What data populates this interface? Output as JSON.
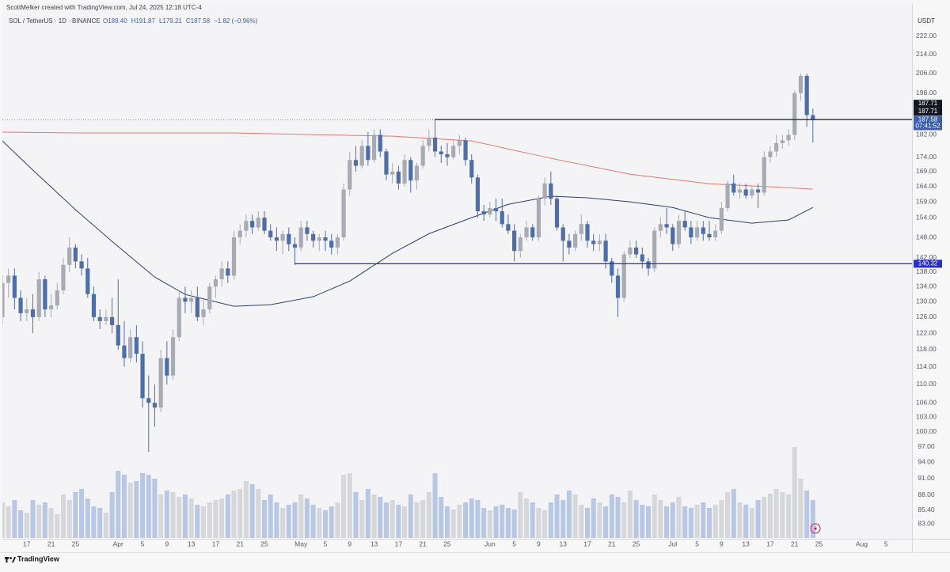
{
  "header": {
    "author_line": "ScottMelker created with TradingView.com, Jul 24, 2025 12:18 UTC-4",
    "symbol": "SOL / TetherUS · 1D · BINANCE",
    "ohlc": [
      "O189.40",
      "H191.87",
      "L179.21",
      "C187.58"
    ],
    "change": "−1.82 (−0.96%)"
  },
  "brand": "TradingView",
  "chart_data": {
    "type": "candlestick",
    "currency": "USDT",
    "log_scale": true,
    "grid": false,
    "up_color": "#a8abb3",
    "down_color": "#4f6da6",
    "volume_up_color": "#d6d7da",
    "volume_down_color": "#b7c7e4",
    "xlim": [
      "03-13",
      "08-09"
    ],
    "ylim": [
      80.7,
      231.4
    ],
    "xticks": [
      {
        "value": "03-17",
        "label": "17"
      },
      {
        "value": "03-21",
        "label": "21"
      },
      {
        "value": "03-25",
        "label": "25"
      },
      {
        "value": "04-01",
        "label": "Apr"
      },
      {
        "value": "04-05",
        "label": "5"
      },
      {
        "value": "04-09",
        "label": "9"
      },
      {
        "value": "04-13",
        "label": "13"
      },
      {
        "value": "04-17",
        "label": "17"
      },
      {
        "value": "04-21",
        "label": "21"
      },
      {
        "value": "04-25",
        "label": "25"
      },
      {
        "value": "05-01",
        "label": "May"
      },
      {
        "value": "05-05",
        "label": "5"
      },
      {
        "value": "05-09",
        "label": "9"
      },
      {
        "value": "05-13",
        "label": "13"
      },
      {
        "value": "05-17",
        "label": "17"
      },
      {
        "value": "05-21",
        "label": "21"
      },
      {
        "value": "05-25",
        "label": "25"
      },
      {
        "value": "06-01",
        "label": "Jun"
      },
      {
        "value": "06-05",
        "label": "5"
      },
      {
        "value": "06-09",
        "label": "9"
      },
      {
        "value": "06-13",
        "label": "13"
      },
      {
        "value": "06-17",
        "label": "17"
      },
      {
        "value": "06-21",
        "label": "21"
      },
      {
        "value": "06-25",
        "label": "25"
      },
      {
        "value": "07-01",
        "label": "Jul"
      },
      {
        "value": "07-05",
        "label": "5"
      },
      {
        "value": "07-09",
        "label": "9"
      },
      {
        "value": "07-13",
        "label": "13"
      },
      {
        "value": "07-17",
        "label": "17"
      },
      {
        "value": "07-21",
        "label": "21"
      },
      {
        "value": "07-25",
        "label": "25"
      },
      {
        "value": "08-01",
        "label": "Aug"
      },
      {
        "value": "08-05",
        "label": "5"
      }
    ],
    "yticks": [
      {
        "value": 222,
        "label": "222.00"
      },
      {
        "value": 214,
        "label": "214.00"
      },
      {
        "value": 206,
        "label": "206.00"
      },
      {
        "value": 198,
        "label": "198.00"
      },
      {
        "value": 182,
        "label": "182.00"
      },
      {
        "value": 174,
        "label": "174.00"
      },
      {
        "value": 169,
        "label": "169.00"
      },
      {
        "value": 164,
        "label": "164.00"
      },
      {
        "value": 159,
        "label": "159.00"
      },
      {
        "value": 154,
        "label": "154.00"
      },
      {
        "value": 148,
        "label": "148.00"
      },
      {
        "value": 142,
        "label": "142.00"
      },
      {
        "value": 138,
        "label": "138.00"
      },
      {
        "value": 134,
        "label": "134.00"
      },
      {
        "value": 130,
        "label": "130.00"
      },
      {
        "value": 126,
        "label": "126.00"
      },
      {
        "value": 122,
        "label": "122.00"
      },
      {
        "value": 118,
        "label": "118.00"
      },
      {
        "value": 114,
        "label": "114.00"
      },
      {
        "value": 110,
        "label": "110.00"
      },
      {
        "value": 106,
        "label": "106.00"
      },
      {
        "value": 103,
        "label": "103.00"
      },
      {
        "value": 100,
        "label": "100.00"
      },
      {
        "value": 97,
        "label": "97.00"
      },
      {
        "value": 94,
        "label": "94.00"
      },
      {
        "value": 91,
        "label": "91.00"
      },
      {
        "value": 88,
        "label": "88.00"
      },
      {
        "value": 85.4,
        "label": "85.40"
      },
      {
        "value": 83,
        "label": "83.00"
      }
    ],
    "x": [
      "03-13",
      "03-14",
      "03-15",
      "03-16",
      "03-17",
      "03-18",
      "03-19",
      "03-20",
      "03-21",
      "03-22",
      "03-23",
      "03-24",
      "03-25",
      "03-26",
      "03-27",
      "03-28",
      "03-29",
      "03-30",
      "03-31",
      "04-01",
      "04-02",
      "04-03",
      "04-04",
      "04-05",
      "04-06",
      "04-07",
      "04-08",
      "04-09",
      "04-10",
      "04-11",
      "04-12",
      "04-13",
      "04-14",
      "04-15",
      "04-16",
      "04-17",
      "04-18",
      "04-19",
      "04-20",
      "04-21",
      "04-22",
      "04-23",
      "04-24",
      "04-25",
      "04-26",
      "04-27",
      "04-28",
      "04-29",
      "04-30",
      "05-01",
      "05-02",
      "05-03",
      "05-04",
      "05-05",
      "05-06",
      "05-07",
      "05-08",
      "05-09",
      "05-10",
      "05-11",
      "05-12",
      "05-13",
      "05-14",
      "05-15",
      "05-16",
      "05-17",
      "05-18",
      "05-19",
      "05-20",
      "05-21",
      "05-22",
      "05-23",
      "05-24",
      "05-25",
      "05-26",
      "05-27",
      "05-28",
      "05-29",
      "05-30",
      "05-31",
      "06-01",
      "06-02",
      "06-03",
      "06-04",
      "06-05",
      "06-06",
      "06-07",
      "06-08",
      "06-09",
      "06-10",
      "06-11",
      "06-12",
      "06-13",
      "06-14",
      "06-15",
      "06-16",
      "06-17",
      "06-18",
      "06-19",
      "06-20",
      "06-21",
      "06-22",
      "06-23",
      "06-24",
      "06-25",
      "06-26",
      "06-27",
      "06-28",
      "06-29",
      "06-30",
      "07-01",
      "07-02",
      "07-03",
      "07-04",
      "07-05",
      "07-06",
      "07-07",
      "07-08",
      "07-09",
      "07-10",
      "07-11",
      "07-12",
      "07-13",
      "07-14",
      "07-15",
      "07-16",
      "07-17",
      "07-18",
      "07-19",
      "07-20",
      "07-21",
      "07-22",
      "07-23",
      "07-24"
    ],
    "open": [
      126,
      135,
      137,
      131,
      127,
      128,
      126,
      136,
      128,
      129,
      133,
      140,
      145,
      141,
      139,
      132,
      126,
      125,
      126,
      124,
      119,
      116,
      121,
      117,
      107,
      106,
      105,
      116,
      112,
      121,
      131,
      130,
      131,
      126,
      128,
      134,
      136,
      139,
      137,
      148,
      150,
      153,
      151,
      154,
      150,
      148,
      147,
      149,
      146,
      145,
      151,
      149,
      147,
      148,
      147,
      145,
      148,
      163,
      173,
      171,
      178,
      173,
      182,
      176,
      168,
      169,
      165,
      173,
      166,
      171,
      178,
      181,
      176,
      175,
      174,
      178,
      180,
      173,
      167,
      156,
      155,
      157,
      156,
      152,
      150,
      144,
      148,
      151,
      148,
      160,
      165,
      160,
      151,
      147,
      145,
      149,
      152,
      147,
      146,
      147,
      141,
      137,
      131,
      143,
      145,
      143,
      141,
      139,
      150,
      152,
      151,
      146,
      153,
      151,
      148,
      151,
      149,
      148,
      150,
      157,
      165,
      162,
      163,
      161,
      163,
      162,
      174,
      176,
      179,
      180,
      182,
      198,
      205,
      189.4
    ],
    "high": [
      137,
      139,
      139,
      133,
      131,
      132,
      138,
      137,
      132,
      135,
      142,
      148,
      146,
      143,
      142,
      134,
      128,
      128,
      131,
      136,
      125,
      123,
      124,
      120,
      112,
      110,
      118,
      120,
      123,
      133,
      134,
      133,
      134,
      131,
      135,
      137,
      141,
      141,
      150,
      152,
      155,
      155,
      156,
      156,
      152,
      151,
      150,
      151,
      148,
      153,
      153,
      150,
      149,
      150,
      149,
      149,
      165,
      176,
      178,
      180,
      183,
      184,
      184,
      177,
      172,
      171,
      175,
      174,
      172,
      180,
      184,
      188,
      178,
      179,
      180,
      182,
      181,
      175,
      168,
      158,
      159,
      160,
      160,
      155,
      152,
      149,
      153,
      152,
      161,
      167,
      169,
      161,
      152,
      149,
      150,
      155,
      153,
      149,
      149,
      149,
      142,
      139,
      144,
      147,
      147,
      145,
      142,
      151,
      154,
      157,
      152,
      155,
      156,
      153,
      153,
      153,
      153,
      152,
      159,
      166,
      168,
      165,
      165,
      164,
      165,
      176,
      178,
      182,
      182,
      184,
      199,
      206,
      206,
      191.87
    ],
    "low": [
      124,
      131,
      128,
      125,
      125,
      122,
      125,
      126,
      126,
      128,
      132,
      138,
      139,
      137,
      131,
      125,
      123,
      124,
      122,
      118,
      114,
      115,
      115,
      105,
      96,
      101,
      104,
      110,
      111,
      120,
      127,
      127,
      125,
      124,
      127,
      131,
      134,
      135,
      136,
      146,
      148,
      149,
      150,
      149,
      147,
      144,
      143,
      144,
      140,
      144,
      147,
      145,
      144,
      144,
      143,
      143,
      147,
      161,
      169,
      170,
      171,
      172,
      174,
      166,
      165,
      163,
      164,
      162,
      163,
      170,
      176,
      174,
      172,
      171,
      173,
      175,
      171,
      165,
      154,
      153,
      154,
      153,
      151,
      149,
      141,
      142,
      147,
      147,
      147,
      158,
      158,
      150,
      141,
      143,
      144,
      147,
      145,
      144,
      144,
      139,
      135,
      126,
      130,
      142,
      142,
      139,
      137,
      138,
      148,
      149,
      144,
      145,
      150,
      146,
      147,
      147,
      147,
      147,
      149,
      156,
      161,
      160,
      160,
      160,
      157,
      161,
      172,
      174,
      177,
      178,
      180,
      195,
      185,
      179.21
    ],
    "close": [
      135,
      137,
      131,
      127,
      128,
      126,
      136,
      128,
      129,
      133,
      140,
      145,
      141,
      139,
      132,
      126,
      125,
      126,
      124,
      119,
      116,
      121,
      117,
      107,
      106,
      105,
      116,
      112,
      121,
      131,
      130,
      131,
      126,
      128,
      134,
      136,
      139,
      137,
      148,
      150,
      153,
      151,
      154,
      150,
      148,
      147,
      149,
      146,
      145,
      151,
      149,
      147,
      148,
      147,
      145,
      148,
      163,
      173,
      171,
      178,
      173,
      182,
      176,
      168,
      169,
      165,
      173,
      166,
      171,
      178,
      181,
      176,
      175,
      174,
      178,
      180,
      173,
      167,
      156,
      155,
      157,
      156,
      152,
      150,
      144,
      148,
      151,
      148,
      160,
      165,
      160,
      151,
      147,
      145,
      149,
      152,
      147,
      146,
      147,
      141,
      137,
      131,
      143,
      145,
      143,
      141,
      139,
      150,
      152,
      151,
      146,
      153,
      151,
      148,
      151,
      149,
      148,
      150,
      157,
      165,
      162,
      163,
      161,
      163,
      162,
      174,
      176,
      179,
      180,
      182,
      198,
      205,
      189.4,
      187.58
    ],
    "volume": [
      45,
      40,
      48,
      35,
      32,
      48,
      42,
      45,
      38,
      30,
      55,
      48,
      58,
      62,
      50,
      40,
      38,
      32,
      58,
      85,
      80,
      70,
      72,
      82,
      80,
      75,
      55,
      60,
      58,
      52,
      55,
      50,
      42,
      40,
      45,
      48,
      50,
      55,
      60,
      62,
      72,
      68,
      62,
      48,
      55,
      45,
      38,
      42,
      45,
      55,
      50,
      42,
      38,
      35,
      40,
      45,
      80,
      82,
      58,
      48,
      62,
      55,
      52,
      45,
      48,
      42,
      40,
      55,
      45,
      48,
      58,
      82,
      52,
      40,
      36,
      42,
      45,
      50,
      48,
      38,
      35,
      40,
      42,
      38,
      36,
      58,
      50,
      45,
      38,
      35,
      45,
      55,
      48,
      60,
      55,
      42,
      38,
      50,
      45,
      40,
      55,
      52,
      45,
      60,
      48,
      42,
      40,
      55,
      48,
      40,
      45,
      52,
      40,
      38,
      42,
      45,
      38,
      42,
      48,
      58,
      62,
      45,
      42,
      38,
      48,
      52,
      56,
      62,
      58,
      55,
      115,
      75,
      60,
      48
    ],
    "series": [
      {
        "color": "#e2796c",
        "x": [
          "03-13",
          "03-25",
          "04-20",
          "05-16",
          "05-29",
          "06-11",
          "06-24",
          "07-07",
          "07-20",
          "07-24"
        ],
        "values": [
          183.0,
          182.7,
          182.7,
          181.5,
          179.8,
          173.6,
          168.1,
          164.9,
          163.6,
          163.1
        ]
      },
      {
        "color": "#2d3f6e",
        "x": [
          "03-13",
          "03-18",
          "03-25",
          "03-31",
          "04-07",
          "04-12",
          "04-20",
          "04-26",
          "05-03",
          "05-09",
          "05-16",
          "05-22",
          "05-29",
          "06-04",
          "06-11",
          "06-17",
          "06-24",
          "07-01",
          "07-07",
          "07-14",
          "07-20",
          "07-24"
        ],
        "values": [
          179.8,
          169.5,
          156.5,
          146.8,
          136.6,
          131.9,
          128.8,
          129.2,
          131.3,
          135.5,
          143.3,
          149.1,
          154.0,
          158.2,
          160.8,
          160.3,
          159.0,
          157.2,
          154.0,
          152.3,
          153.3,
          157.2
        ]
      }
    ],
    "levels": [
      {
        "value": 187.71,
        "start": "05-23",
        "label": "187.71",
        "color": "#131722"
      },
      {
        "value": 140.32,
        "start": "04-30",
        "label": "140.32",
        "color": "#2a2ec8"
      }
    ],
    "axis_flags": [
      {
        "value": 187.71,
        "label": "187.71",
        "color": "#131722"
      }
    ],
    "last_price": {
      "value": 187.58,
      "label": "187.58",
      "countdown": "07:41:52",
      "color": "#3b5fa8"
    }
  }
}
